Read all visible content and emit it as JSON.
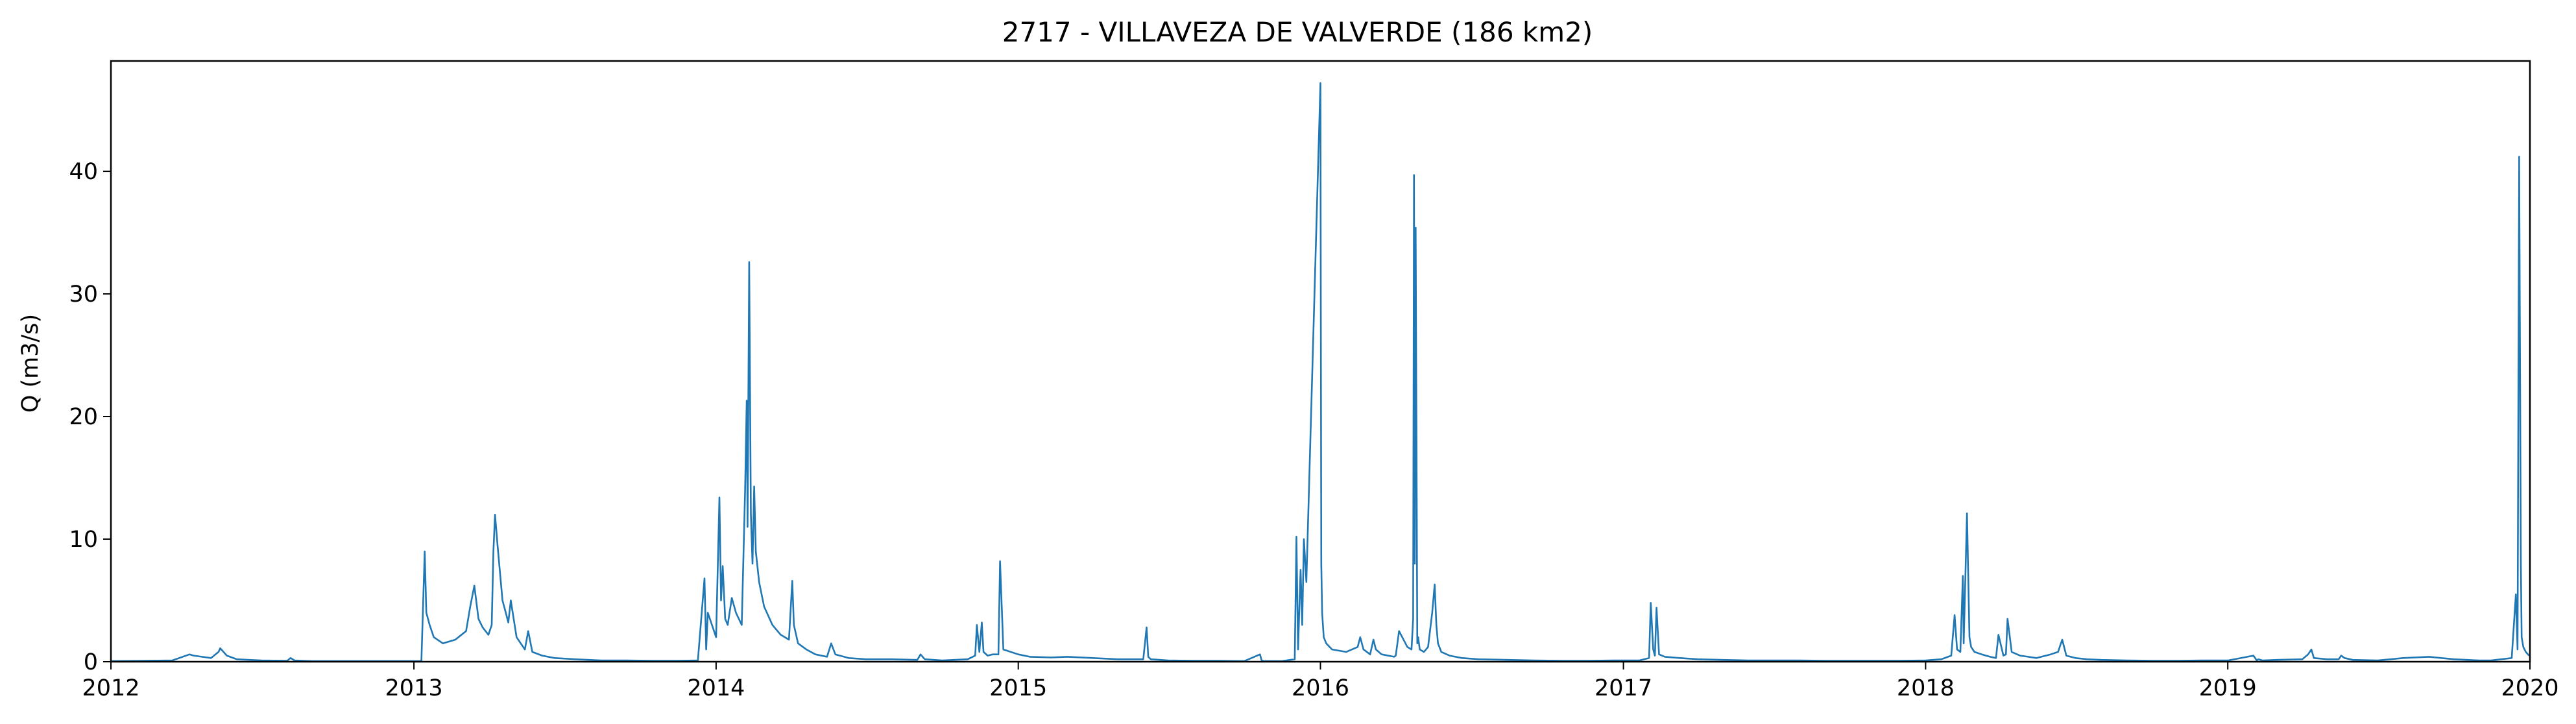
{
  "chart_data": {
    "type": "line",
    "title": "2717 - VILLAVEZA DE VALVERDE (186 km2)",
    "xlabel": "",
    "ylabel": "Q (m3/s)",
    "xlim": [
      "2012-01-01",
      "2020-01-01"
    ],
    "ylim": [
      0,
      49
    ],
    "x_ticks": [
      "2012",
      "2013",
      "2014",
      "2015",
      "2016",
      "2017",
      "2018",
      "2019",
      "2020"
    ],
    "y_ticks": [
      0,
      10,
      20,
      30,
      40
    ],
    "grid": false,
    "legend": "none",
    "line_color": "#1f77b4",
    "series": [
      {
        "x": [
          "2012-01-01",
          "2012-03-15",
          "2012-04-05",
          "2012-04-10",
          "2012-04-20",
          "2012-05-01",
          "2012-05-10",
          "2012-05-12",
          "2012-05-20",
          "2012-06-01",
          "2012-07-01",
          "2012-08-01",
          "2012-08-05",
          "2012-08-10",
          "2012-09-01",
          "2012-10-01",
          "2012-11-01",
          "2012-12-01",
          "2013-01-10",
          "2013-01-14",
          "2013-01-16",
          "2013-01-20",
          "2013-01-25",
          "2013-02-05",
          "2013-02-20",
          "2013-03-05",
          "2013-03-10",
          "2013-03-15",
          "2013-03-20",
          "2013-03-25",
          "2013-04-01",
          "2013-04-05",
          "2013-04-07",
          "2013-04-09",
          "2013-04-12",
          "2013-04-18",
          "2013-04-22",
          "2013-04-25",
          "2013-04-28",
          "2013-05-05",
          "2013-05-15",
          "2013-05-19",
          "2013-05-24",
          "2013-06-05",
          "2013-06-20",
          "2013-07-15",
          "2013-08-15",
          "2013-09-15",
          "2013-10-15",
          "2013-11-15",
          "2013-12-10",
          "2013-12-18",
          "2013-12-20",
          "2013-12-22",
          "2014-01-01",
          "2014-01-05",
          "2014-01-07",
          "2014-01-09",
          "2014-01-12",
          "2014-01-15",
          "2014-01-20",
          "2014-01-25",
          "2014-02-01",
          "2014-02-05",
          "2014-02-07",
          "2014-02-08",
          "2014-02-10",
          "2014-02-12",
          "2014-02-14",
          "2014-02-16",
          "2014-02-18",
          "2014-02-22",
          "2014-02-28",
          "2014-03-10",
          "2014-03-20",
          "2014-03-30",
          "2014-04-03",
          "2014-04-05",
          "2014-04-10",
          "2014-04-20",
          "2014-05-01",
          "2014-05-15",
          "2014-05-20",
          "2014-05-25",
          "2014-06-10",
          "2014-07-01",
          "2014-08-01",
          "2014-09-01",
          "2014-09-05",
          "2014-09-10",
          "2014-10-01",
          "2014-11-01",
          "2014-11-10",
          "2014-11-12",
          "2014-11-15",
          "2014-11-18",
          "2014-11-20",
          "2014-11-25",
          "2014-12-01",
          "2014-12-08",
          "2014-12-10",
          "2014-12-14",
          "2015-01-01",
          "2015-01-15",
          "2015-02-10",
          "2015-03-01",
          "2015-04-01",
          "2015-05-01",
          "2015-06-01",
          "2015-06-05",
          "2015-06-07",
          "2015-06-10",
          "2015-07-01",
          "2015-08-01",
          "2015-09-01",
          "2015-10-01",
          "2015-10-20",
          "2015-10-22",
          "2015-10-25",
          "2015-11-15",
          "2015-12-01",
          "2015-12-03",
          "2015-12-05",
          "2015-12-08",
          "2015-12-10",
          "2015-12-12",
          "2015-12-15",
          "2016-01-01",
          "2016-01-02",
          "2016-01-03",
          "2016-01-05",
          "2016-01-08",
          "2016-01-15",
          "2016-02-01",
          "2016-02-15",
          "2016-02-18",
          "2016-02-22",
          "2016-03-01",
          "2016-03-05",
          "2016-03-08",
          "2016-03-15",
          "2016-03-30",
          "2016-04-01",
          "2016-04-05",
          "2016-04-15",
          "2016-04-20",
          "2016-04-22",
          "2016-04-23",
          "2016-04-24",
          "2016-04-25",
          "2016-04-27",
          "2016-04-28",
          "2016-04-30",
          "2016-05-05",
          "2016-05-10",
          "2016-05-15",
          "2016-05-18",
          "2016-05-20",
          "2016-05-22",
          "2016-05-26",
          "2016-06-05",
          "2016-06-20",
          "2016-07-10",
          "2016-08-15",
          "2016-09-15",
          "2016-10-20",
          "2016-11-20",
          "2016-12-20",
          "2017-01-20",
          "2017-02-01",
          "2017-02-03",
          "2017-02-06",
          "2017-02-08",
          "2017-02-10",
          "2017-02-13",
          "2017-02-20",
          "2017-03-10",
          "2017-04-01",
          "2017-05-01",
          "2017-06-01",
          "2017-07-01",
          "2017-08-01",
          "2017-09-01",
          "2017-10-01",
          "2017-11-01",
          "2017-12-01",
          "2018-01-01",
          "2018-01-20",
          "2018-02-01",
          "2018-02-05",
          "2018-02-08",
          "2018-02-12",
          "2018-02-15",
          "2018-02-16",
          "2018-02-20",
          "2018-02-23",
          "2018-02-25",
          "2018-03-01",
          "2018-03-10",
          "2018-03-15",
          "2018-03-20",
          "2018-03-27",
          "2018-03-30",
          "2018-04-05",
          "2018-04-08",
          "2018-04-10",
          "2018-04-15",
          "2018-04-25",
          "2018-05-05",
          "2018-05-15",
          "2018-06-01",
          "2018-06-10",
          "2018-06-12",
          "2018-06-15",
          "2018-06-20",
          "2018-07-01",
          "2018-07-15",
          "2018-08-01",
          "2018-09-01",
          "2018-10-01",
          "2018-11-01",
          "2018-12-01",
          "2019-01-01",
          "2019-02-01",
          "2019-02-05",
          "2019-02-07",
          "2019-02-12",
          "2019-03-01",
          "2019-04-01",
          "2019-04-08",
          "2019-04-12",
          "2019-04-15",
          "2019-05-01",
          "2019-05-15",
          "2019-05-18",
          "2019-05-22",
          "2019-06-01",
          "2019-07-01",
          "2019-08-01",
          "2019-09-01",
          "2019-10-01",
          "2019-11-01",
          "2019-11-15",
          "2019-12-10",
          "2019-12-15",
          "2019-12-17",
          "2019-12-19",
          "2019-12-21",
          "2019-12-22",
          "2019-12-24",
          "2019-12-27",
          "2019-12-31"
        ],
        "y": [
          0.05,
          0.1,
          0.6,
          0.5,
          0.4,
          0.3,
          0.8,
          1.1,
          0.5,
          0.2,
          0.1,
          0.08,
          0.3,
          0.1,
          0.05,
          0.05,
          0.05,
          0.05,
          0.05,
          9.0,
          4.0,
          3.0,
          2.0,
          1.5,
          1.8,
          2.5,
          4.5,
          6.2,
          3.5,
          2.8,
          2.2,
          3.0,
          9.0,
          12.0,
          9.5,
          5.0,
          4.0,
          3.2,
          5.0,
          2.0,
          1.0,
          2.5,
          0.8,
          0.5,
          0.3,
          0.2,
          0.1,
          0.1,
          0.08,
          0.08,
          0.1,
          6.8,
          1.0,
          4.0,
          2.0,
          13.4,
          5.0,
          7.8,
          3.5,
          3.0,
          5.2,
          4.0,
          3.0,
          14.0,
          21.3,
          11.0,
          32.6,
          12.0,
          8.0,
          14.3,
          9.0,
          6.5,
          4.5,
          3.0,
          2.2,
          1.8,
          6.6,
          3.0,
          1.5,
          1.0,
          0.6,
          0.4,
          1.5,
          0.6,
          0.3,
          0.2,
          0.2,
          0.15,
          0.6,
          0.2,
          0.1,
          0.2,
          0.5,
          3.0,
          0.8,
          3.2,
          0.8,
          0.5,
          0.6,
          0.6,
          8.2,
          1.0,
          0.6,
          0.4,
          0.35,
          0.4,
          0.3,
          0.2,
          0.2,
          2.8,
          0.4,
          0.2,
          0.1,
          0.08,
          0.08,
          0.05,
          0.6,
          0.1,
          0.05,
          0.05,
          0.2,
          10.2,
          1.0,
          7.5,
          3.0,
          10.0,
          6.5,
          47.2,
          8.0,
          4.0,
          2.0,
          1.5,
          1.0,
          0.8,
          1.2,
          2.0,
          1.0,
          0.6,
          1.8,
          1.0,
          0.6,
          0.4,
          0.5,
          2.5,
          1.2,
          1.0,
          3.5,
          39.7,
          8.0,
          35.4,
          1.5,
          2.0,
          1.0,
          0.8,
          1.2,
          4.0,
          6.3,
          3.0,
          1.5,
          0.8,
          0.5,
          0.3,
          0.2,
          0.15,
          0.1,
          0.08,
          0.08,
          0.1,
          0.1,
          0.3,
          4.8,
          1.0,
          0.5,
          4.4,
          0.6,
          0.4,
          0.3,
          0.2,
          0.15,
          0.1,
          0.1,
          0.1,
          0.08,
          0.08,
          0.08,
          0.08,
          0.1,
          0.2,
          0.5,
          3.8,
          1.0,
          0.8,
          7.0,
          1.5,
          12.1,
          2.0,
          1.2,
          0.8,
          0.6,
          0.5,
          0.4,
          0.3,
          2.2,
          0.5,
          0.6,
          3.5,
          0.8,
          0.5,
          0.4,
          0.3,
          0.6,
          0.8,
          1.2,
          1.8,
          0.5,
          0.3,
          0.2,
          0.15,
          0.1,
          0.08,
          0.08,
          0.1,
          0.1,
          0.5,
          0.1,
          0.2,
          0.1,
          0.15,
          0.2,
          0.6,
          1.0,
          0.3,
          0.2,
          0.2,
          0.5,
          0.3,
          0.15,
          0.1,
          0.3,
          0.4,
          0.2,
          0.1,
          0.1,
          0.3,
          5.5,
          1.0,
          41.2,
          8.0,
          2.0,
          1.2,
          0.8,
          0.5
        ]
      }
    ]
  }
}
